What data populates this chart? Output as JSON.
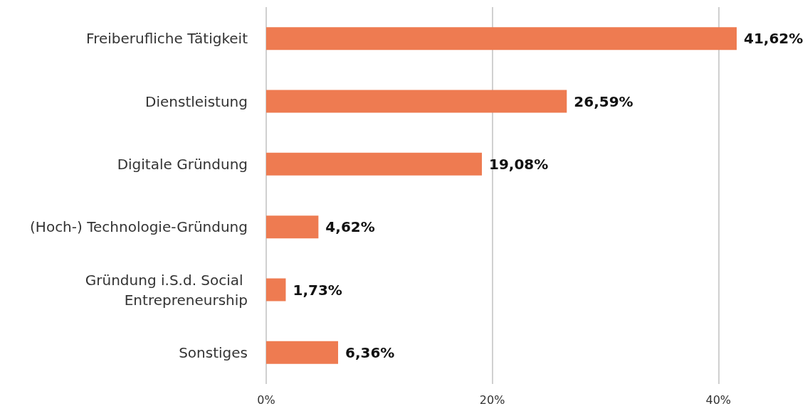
{
  "chart_data": {
    "type": "bar",
    "orientation": "horizontal",
    "categories": [
      "Freiberufliche Tätigkeit",
      "Dienstleistung",
      "Digitale Gründung",
      "(Hoch-) Technologie-Gründung",
      "Gründung i.S.d. Social Entrepreneurship",
      "Sonstiges"
    ],
    "values": [
      41.62,
      26.59,
      19.08,
      4.62,
      1.73,
      6.36
    ],
    "value_labels": [
      "41,62%",
      "26,59%",
      "19,08%",
      "4,62%",
      "1,73%",
      "6,36%"
    ],
    "color": "#ee7b51",
    "xticks": [
      {
        "value": 0,
        "label": "0%"
      },
      {
        "value": 20,
        "label": "20%"
      },
      {
        "value": 40,
        "label": "40%"
      }
    ],
    "xlim": [
      0,
      41.62
    ],
    "grid": "x"
  }
}
